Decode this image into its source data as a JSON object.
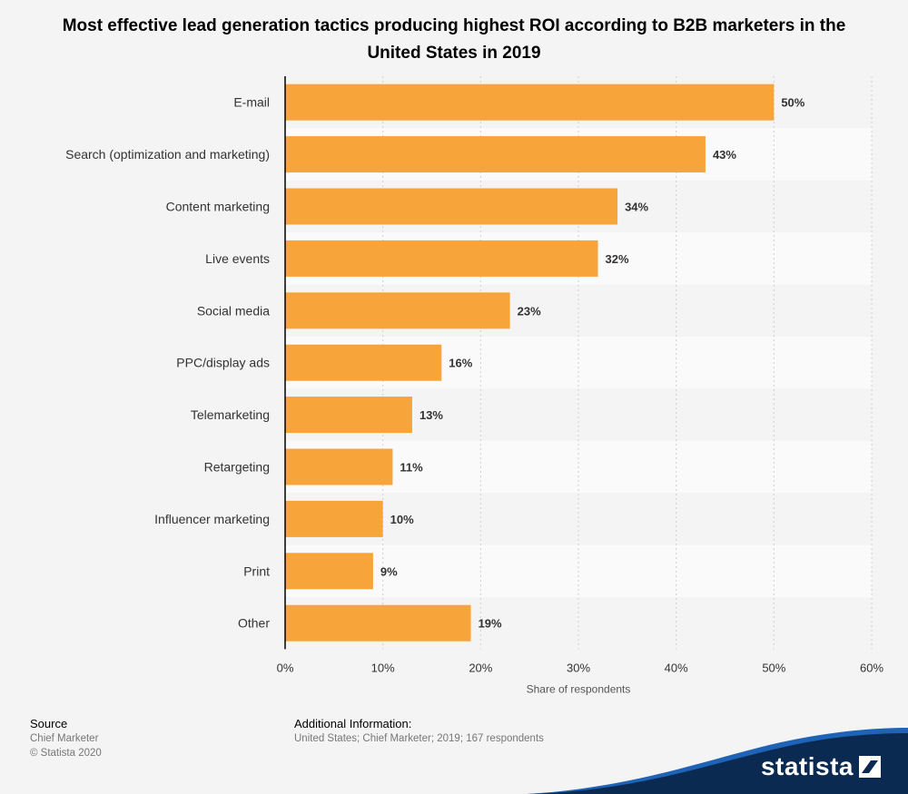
{
  "title": "Most effective lead generation tactics producing highest ROI according to B2B marketers in the United States in 2019",
  "chart_data": {
    "type": "bar",
    "orientation": "horizontal",
    "categories": [
      "E-mail",
      "Search (optimization and marketing)",
      "Content marketing",
      "Live events",
      "Social media",
      "PPC/display ads",
      "Telemarketing",
      "Retargeting",
      "Influencer marketing",
      "Print",
      "Other"
    ],
    "values": [
      50,
      43,
      34,
      32,
      23,
      16,
      13,
      11,
      10,
      9,
      19
    ],
    "value_labels": [
      "50%",
      "43%",
      "34%",
      "32%",
      "23%",
      "16%",
      "13%",
      "11%",
      "10%",
      "9%",
      "19%"
    ],
    "xlim": [
      0,
      60
    ],
    "x_ticks": [
      0,
      10,
      20,
      30,
      40,
      50,
      60
    ],
    "x_tick_labels": [
      "0%",
      "10%",
      "20%",
      "30%",
      "40%",
      "50%",
      "60%"
    ],
    "xlabel": "Share of respondents",
    "ylabel": "",
    "bar_color": "#f7a53b",
    "grid": true
  },
  "footer": {
    "source_heading": "Source",
    "source_name": "Chief Marketer",
    "copyright": "© Statista 2020",
    "info_heading": "Additional Information:",
    "info_text": "United States; Chief Marketer; 2019; 167 respondents"
  },
  "logo": {
    "text": "statista",
    "color": "#0a2a52"
  }
}
